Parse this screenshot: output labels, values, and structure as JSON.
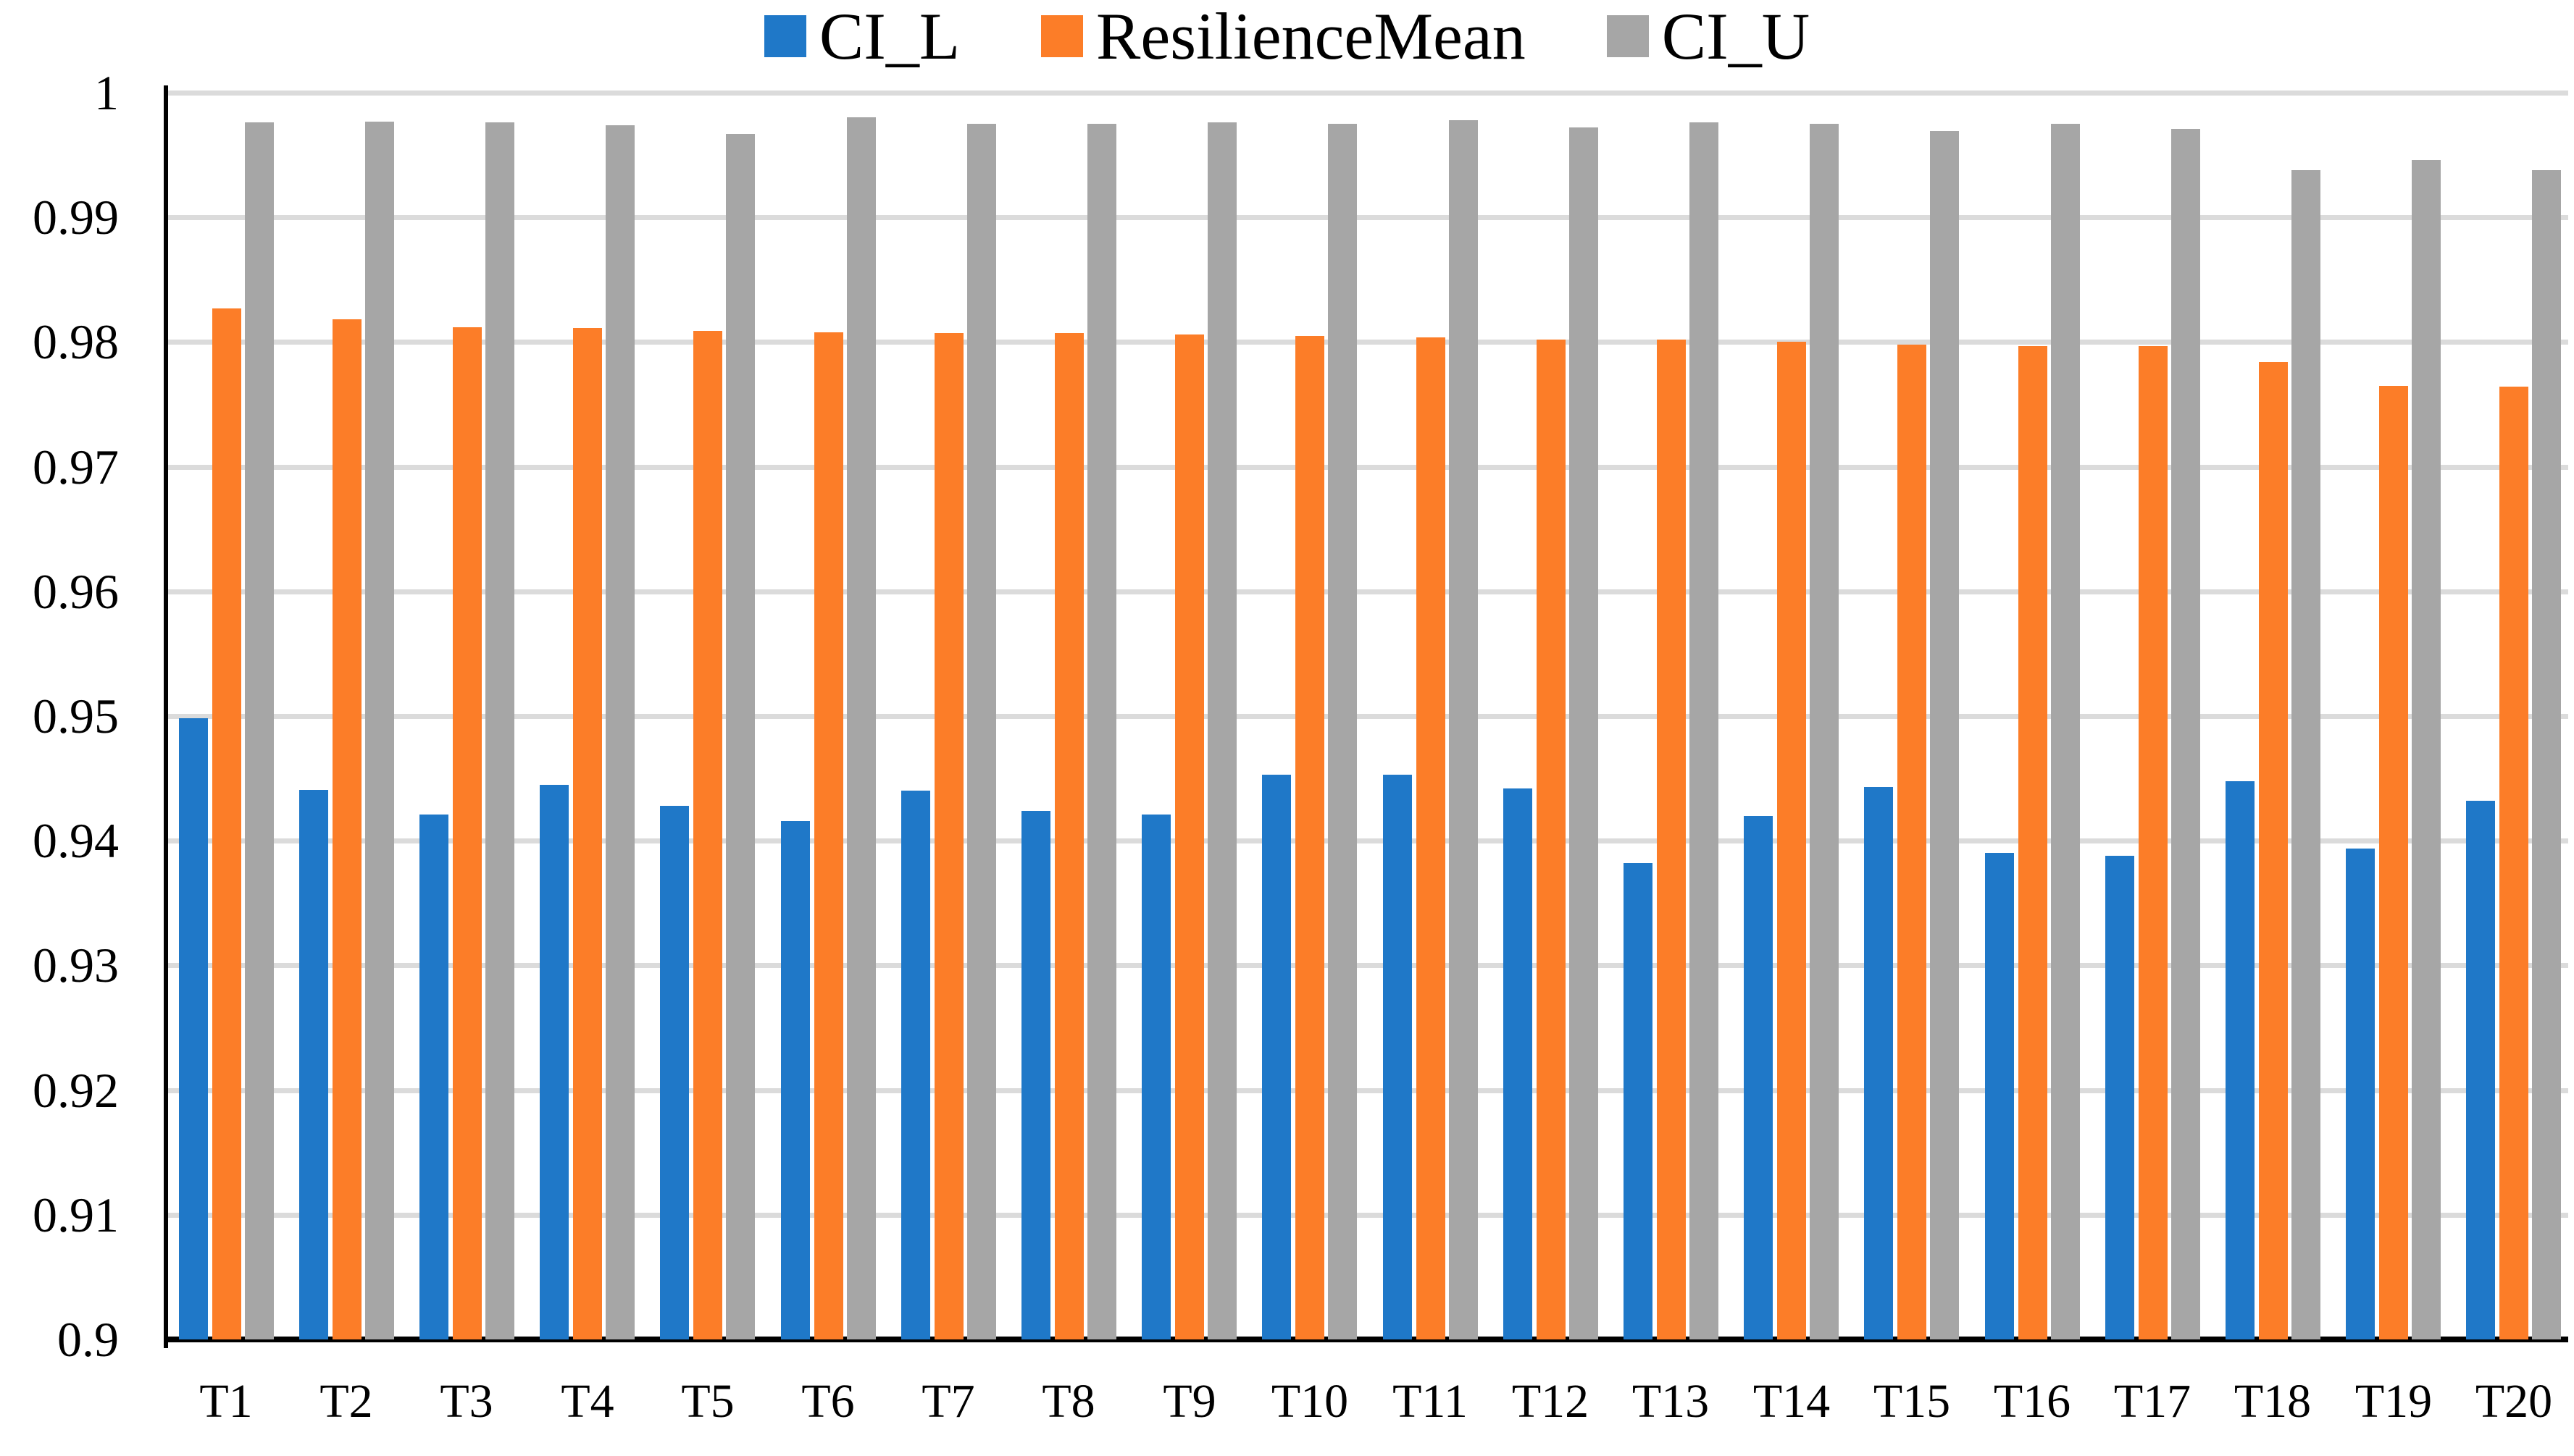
{
  "figure": {
    "background": "#ffffff",
    "axis_color": "#000000",
    "gridline_color": "#dbdbdb"
  },
  "chart_data": {
    "type": "bar",
    "title": "",
    "xlabel": "",
    "ylabel": "",
    "ylim": [
      0.9,
      1.0
    ],
    "grid": true,
    "legend_position": "top-center",
    "categories": [
      "T1",
      "T2",
      "T3",
      "T4",
      "T5",
      "T6",
      "T7",
      "T8",
      "T9",
      "T10",
      "T11",
      "T12",
      "T13",
      "T14",
      "T15",
      "T16",
      "T17",
      "T18",
      "T19",
      "T20"
    ],
    "series": [
      {
        "name": "CI_L",
        "color": "#1f78c8",
        "values": [
          0.9498,
          0.9441,
          0.9421,
          0.9445,
          0.9428,
          0.9416,
          0.944,
          0.9424,
          0.9421,
          0.9453,
          0.9453,
          0.9442,
          0.9382,
          0.942,
          0.9443,
          0.939,
          0.9388,
          0.9448,
          0.9394,
          0.9432
        ]
      },
      {
        "name": "ResilienceMean",
        "color": "#fc7d28",
        "values": [
          0.9827,
          0.9818,
          0.9812,
          0.9811,
          0.9809,
          0.9808,
          0.9807,
          0.9807,
          0.9806,
          0.9805,
          0.9804,
          0.9802,
          0.9802,
          0.98,
          0.9798,
          0.9797,
          0.9797,
          0.9784,
          0.9765,
          0.9764
        ]
      },
      {
        "name": "CI_U",
        "color": "#a6a6a6",
        "values": [
          0.9976,
          0.9977,
          0.9976,
          0.9974,
          0.9967,
          0.998,
          0.9975,
          0.9975,
          0.9976,
          0.9975,
          0.9978,
          0.9972,
          0.9976,
          0.9975,
          0.9969,
          0.9975,
          0.9971,
          0.9938,
          0.9946,
          0.9938
        ]
      }
    ],
    "yticks": [
      {
        "value": 1.0,
        "label": "1"
      },
      {
        "value": 0.99,
        "label": "0.99"
      },
      {
        "value": 0.98,
        "label": "0.98"
      },
      {
        "value": 0.97,
        "label": "0.97"
      },
      {
        "value": 0.96,
        "label": "0.96"
      },
      {
        "value": 0.95,
        "label": "0.95"
      },
      {
        "value": 0.94,
        "label": "0.94"
      },
      {
        "value": 0.93,
        "label": "0.93"
      },
      {
        "value": 0.92,
        "label": "0.92"
      },
      {
        "value": 0.91,
        "label": "0.91"
      },
      {
        "value": 0.9,
        "label": "0.9"
      }
    ]
  }
}
